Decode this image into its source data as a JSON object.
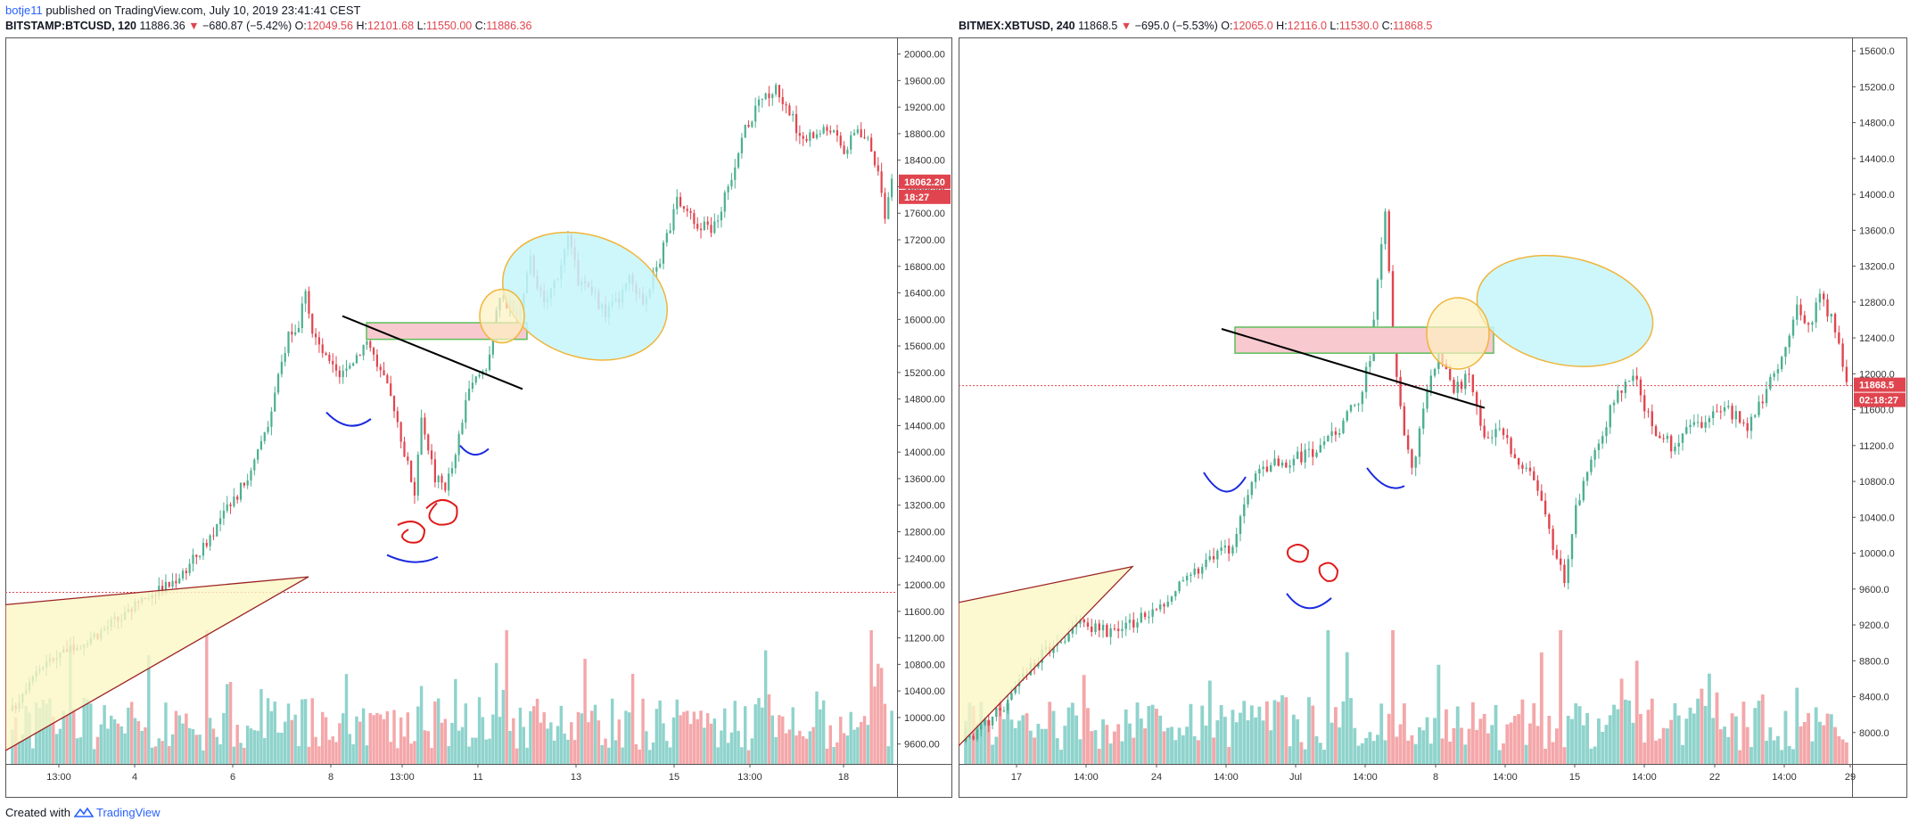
{
  "publisher": {
    "user": "botje11",
    "text": "published on TradingView.com, July 10, 2019 23:41:41 CEST"
  },
  "footer": {
    "created_with": "Created with",
    "brand": "TradingView"
  },
  "colors": {
    "up": "#4caf91",
    "down": "#e0454f",
    "vol_up": "#8fd3cc",
    "vol_down": "#f4a7a9",
    "cyan_fill": "#c6f6fb",
    "ellipse_stroke": "#f0b53a",
    "pink_fill": "#f8c9cf",
    "green_stroke": "#5cbf5c",
    "triangle_fill": "#fbf6c4",
    "triangle_stroke": "#9c2222"
  },
  "charts": [
    {
      "symbol": "BITSTAMP:BTCUSD, 120",
      "close_value": "11886.36",
      "change": "−680.87 (−5.42%)",
      "open": "12049.56",
      "high": "12101.68",
      "low": "11550.00",
      "close": "11886.36",
      "price_label": "18062.20",
      "timer_label": "18:27",
      "y_ticks": [
        "9600.00",
        "10000.00",
        "10400.00",
        "10800.00",
        "11200.00",
        "11600.00",
        "12000.00",
        "12400.00",
        "12800.00",
        "13200.00",
        "13600.00",
        "14000.00",
        "14400.00",
        "14800.00",
        "15200.00",
        "15600.00",
        "16000.00",
        "16400.00",
        "16800.00",
        "17200.00",
        "17600.00",
        "18000.00",
        "18400.00",
        "18800.00",
        "19200.00",
        "19600.00",
        "20000.00"
      ],
      "x_ticks": [
        "13:00",
        "4",
        "6",
        "8",
        "13:00",
        "11",
        "13",
        "15",
        "13:00",
        "18"
      ]
    },
    {
      "symbol": "BITMEX:XBTUSD, 240",
      "close_value": "11868.5",
      "change": "−695.0 (−5.53%)",
      "open": "12065.0",
      "high": "12116.0",
      "low": "11530.0",
      "close": "11868.5",
      "price_label": "11868.5",
      "timer_label": "02:18:27",
      "y_ticks": [
        "8000.0",
        "8400.0",
        "8800.0",
        "9200.0",
        "9600.0",
        "10000.0",
        "10400.0",
        "10800.0",
        "11200.0",
        "11600.0",
        "12000.0",
        "12400.0",
        "12800.0",
        "13200.0",
        "13600.0",
        "14000.0",
        "14400.0",
        "14800.0",
        "15200.0",
        "15600.0"
      ],
      "x_ticks": [
        "17",
        "14:00",
        "24",
        "14:00",
        "Jul",
        "14:00",
        "8",
        "14:00",
        "15",
        "14:00",
        "22",
        "14:00",
        "29"
      ]
    }
  ],
  "chart_data": [
    {
      "type": "candlestick",
      "title": "BITSTAMP:BTCUSD, 120",
      "ylim": [
        9300,
        20250
      ],
      "xlabel": "",
      "ylabel": "",
      "anchors": [
        [
          0,
          10100
        ],
        [
          6,
          10700
        ],
        [
          10,
          10800
        ],
        [
          14,
          11000
        ],
        [
          18,
          11100
        ],
        [
          22,
          11200
        ],
        [
          26,
          11300
        ],
        [
          30,
          11450
        ],
        [
          34,
          11550
        ],
        [
          38,
          11750
        ],
        [
          42,
          11900
        ],
        [
          46,
          12000
        ],
        [
          50,
          12200
        ],
        [
          55,
          12500
        ],
        [
          60,
          12900
        ],
        [
          65,
          13300
        ],
        [
          70,
          13700
        ],
        [
          75,
          14400
        ],
        [
          78,
          15100
        ],
        [
          81,
          15800
        ],
        [
          84,
          15900
        ],
        [
          86,
          16500
        ],
        [
          88,
          15800
        ],
        [
          92,
          15400
        ],
        [
          96,
          15100
        ],
        [
          100,
          15400
        ],
        [
          104,
          15700
        ],
        [
          108,
          15200
        ],
        [
          112,
          14700
        ],
        [
          115,
          14000
        ],
        [
          118,
          13400
        ],
        [
          120,
          14600
        ],
        [
          124,
          13600
        ],
        [
          127,
          13500
        ],
        [
          130,
          13900
        ],
        [
          133,
          14800
        ],
        [
          136,
          15100
        ],
        [
          139,
          15300
        ],
        [
          141,
          15800
        ],
        [
          143,
          16300
        ],
        [
          146,
          16200
        ],
        [
          149,
          16100
        ],
        [
          152,
          16900
        ],
        [
          156,
          16200
        ],
        [
          160,
          16700
        ],
        [
          163,
          17200
        ],
        [
          166,
          16600
        ],
        [
          170,
          16400
        ],
        [
          174,
          16100
        ],
        [
          178,
          16300
        ],
        [
          181,
          16600
        ],
        [
          185,
          16300
        ],
        [
          190,
          16900
        ],
        [
          195,
          17800
        ],
        [
          200,
          17500
        ],
        [
          205,
          17300
        ],
        [
          210,
          18000
        ],
        [
          215,
          18900
        ],
        [
          220,
          19300
        ],
        [
          224,
          19500
        ],
        [
          228,
          19100
        ],
        [
          232,
          18700
        ],
        [
          236,
          18800
        ],
        [
          240,
          18900
        ],
        [
          244,
          18500
        ],
        [
          248,
          18900
        ],
        [
          252,
          18600
        ],
        [
          254,
          18200
        ],
        [
          256,
          17600
        ],
        [
          258,
          18062
        ]
      ],
      "volume_max": 1,
      "annotations": [
        "ascending triangle",
        "resistance zone",
        "yellow ellipse",
        "cyan ellipse",
        "trendline",
        "blue arcs",
        "red loops"
      ]
    },
    {
      "type": "candlestick",
      "title": "BITMEX:XBTUSD, 240",
      "ylim": [
        7650,
        15750
      ],
      "xlabel": "",
      "ylabel": "",
      "anchors": [
        [
          0,
          7900
        ],
        [
          10,
          8300
        ],
        [
          20,
          8900
        ],
        [
          30,
          9200
        ],
        [
          40,
          9100
        ],
        [
          50,
          9400
        ],
        [
          58,
          9700
        ],
        [
          64,
          9900
        ],
        [
          70,
          10100
        ],
        [
          76,
          10900
        ],
        [
          82,
          11000
        ],
        [
          90,
          11100
        ],
        [
          98,
          11400
        ],
        [
          103,
          11700
        ],
        [
          106,
          12200
        ],
        [
          108,
          13000
        ],
        [
          110,
          13800
        ],
        [
          112,
          12400
        ],
        [
          114,
          11600
        ],
        [
          117,
          10900
        ],
        [
          120,
          11600
        ],
        [
          124,
          12300
        ],
        [
          128,
          11800
        ],
        [
          132,
          12000
        ],
        [
          136,
          11300
        ],
        [
          140,
          11400
        ],
        [
          144,
          11100
        ],
        [
          148,
          10900
        ],
        [
          152,
          10400
        ],
        [
          155,
          9900
        ],
        [
          157,
          9700
        ],
        [
          160,
          10500
        ],
        [
          165,
          11100
        ],
        [
          170,
          11700
        ],
        [
          175,
          12000
        ],
        [
          180,
          11400
        ],
        [
          185,
          11200
        ],
        [
          190,
          11400
        ],
        [
          195,
          11500
        ],
        [
          200,
          11600
        ],
        [
          205,
          11400
        ],
        [
          210,
          11800
        ],
        [
          215,
          12300
        ],
        [
          218,
          12700
        ],
        [
          221,
          12500
        ],
        [
          224,
          12900
        ],
        [
          227,
          12600
        ],
        [
          229,
          12300
        ],
        [
          231,
          11868
        ]
      ],
      "volume_max": 1,
      "annotations": [
        "ascending triangle",
        "resistance zone",
        "yellow ellipse",
        "cyan ellipse",
        "trendline",
        "blue arcs",
        "red loops"
      ]
    }
  ]
}
